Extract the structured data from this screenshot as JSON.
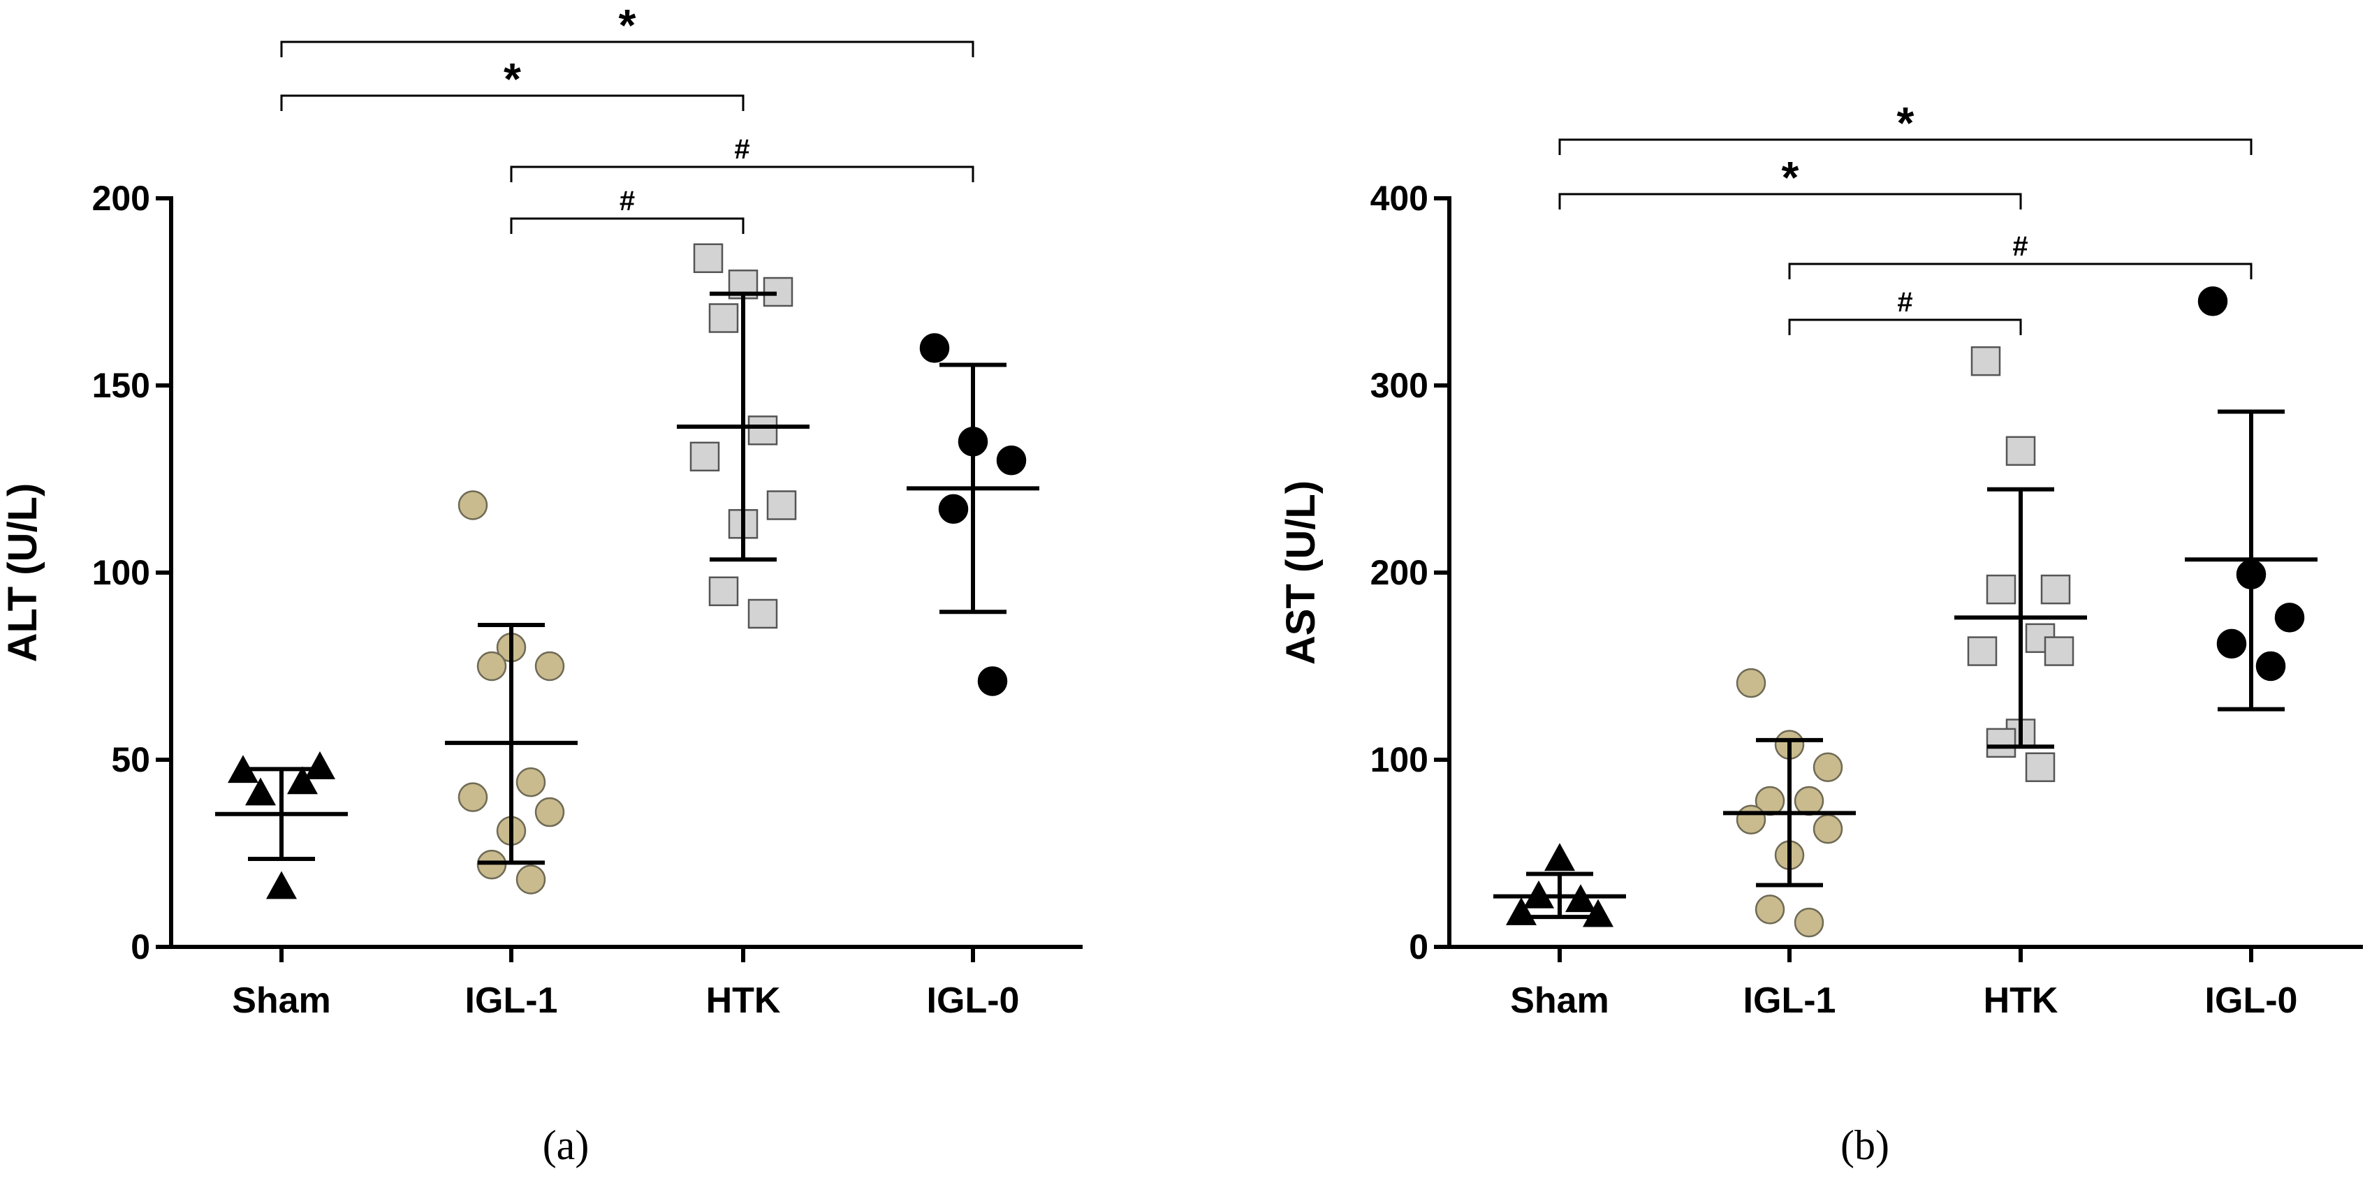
{
  "chart_data": [
    {
      "type": "scatter",
      "panel_label": "(a)",
      "ylabel": "ALT (U/L)",
      "ylim": [
        0,
        200
      ],
      "yticks": [
        0,
        50,
        100,
        150,
        200
      ],
      "ytick_labels": [
        "0",
        "50",
        "100",
        "150",
        "200"
      ],
      "categories": [
        "Sham",
        "IGL-1",
        "HTK",
        "IGL-0"
      ],
      "groups": [
        {
          "name": "Sham",
          "marker": "triangle",
          "color": "#000000",
          "points": [
            16,
            41,
            44,
            47,
            48
          ],
          "mean": 35.5,
          "sd_low": 23.5,
          "sd_high": 47.5
        },
        {
          "name": "IGL-1",
          "marker": "circle",
          "color": "#C9BB8E",
          "points": [
            118,
            80,
            75,
            75,
            44,
            40,
            36,
            31,
            22,
            18
          ],
          "mean": 54.5,
          "sd_low": 22.5,
          "sd_high": 86
        },
        {
          "name": "HTK",
          "marker": "square",
          "color": "#D3D3D3",
          "points": [
            184,
            177,
            175,
            168,
            138,
            131,
            118,
            113,
            95,
            89
          ],
          "mean": 139,
          "sd_low": 103.5,
          "sd_high": 174.5
        },
        {
          "name": "IGL-0",
          "marker": "circle",
          "color": "#000000",
          "points": [
            160,
            135,
            130,
            117,
            71
          ],
          "mean": 122.5,
          "sd_low": 89.5,
          "sd_high": 155.5
        }
      ],
      "significance": [
        {
          "from": "Sham",
          "to": "IGL-0",
          "label": "*"
        },
        {
          "from": "Sham",
          "to": "HTK",
          "label": "*"
        },
        {
          "from": "IGL-1",
          "to": "IGL-0",
          "label": "#"
        },
        {
          "from": "IGL-1",
          "to": "HTK",
          "label": "#"
        }
      ]
    },
    {
      "type": "scatter",
      "panel_label": "(b)",
      "ylabel": "AST (U/L)",
      "ylim": [
        0,
        400
      ],
      "yticks": [
        0,
        100,
        200,
        300,
        400
      ],
      "ytick_labels": [
        "0",
        "100",
        "200",
        "300",
        "400"
      ],
      "categories": [
        "Sham",
        "IGL-1",
        "HTK",
        "IGL-0"
      ],
      "groups": [
        {
          "name": "Sham",
          "marker": "triangle",
          "color": "#000000",
          "points": [
            47,
            27,
            25,
            18,
            17
          ],
          "mean": 27,
          "sd_low": 16,
          "sd_high": 39
        },
        {
          "name": "IGL-1",
          "marker": "circle",
          "color": "#C9BB8E",
          "points": [
            141,
            108,
            96,
            78,
            78,
            68,
            63,
            49,
            20,
            13
          ],
          "mean": 71.5,
          "sd_low": 33,
          "sd_high": 110.5
        },
        {
          "name": "HTK",
          "marker": "square",
          "color": "#D3D3D3",
          "points": [
            313,
            265,
            191,
            191,
            165,
            158,
            158,
            114,
            109,
            96
          ],
          "mean": 176,
          "sd_low": 107,
          "sd_high": 244.5
        },
        {
          "name": "IGL-0",
          "marker": "circle",
          "color": "#000000",
          "points": [
            345,
            199,
            176,
            162,
            150
          ],
          "mean": 207,
          "sd_low": 127,
          "sd_high": 286
        }
      ],
      "significance": [
        {
          "from": "Sham",
          "to": "IGL-0",
          "label": "*"
        },
        {
          "from": "Sham",
          "to": "HTK",
          "label": "*"
        },
        {
          "from": "IGL-1",
          "to": "IGL-0",
          "label": "#"
        },
        {
          "from": "IGL-1",
          "to": "HTK",
          "label": "#"
        }
      ]
    }
  ]
}
